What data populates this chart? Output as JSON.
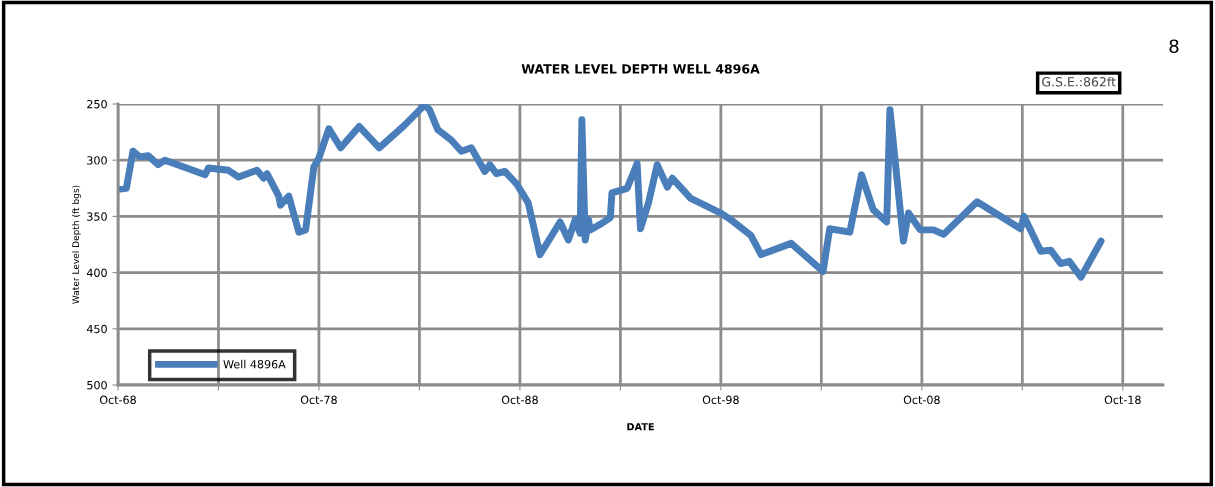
{
  "chart_data": {
    "type": "line",
    "title": "WATER LEVEL DEPTH WELL 4896A",
    "xlabel": "DATE",
    "ylabel": "Water Level Depth (ft bgs)",
    "annotations": [
      "G.S.E.:862ft",
      "8"
    ],
    "x": [
      "1968-10",
      "1969-03",
      "1969-07",
      "1969-11",
      "1970-04",
      "1970-10",
      "1971-02",
      "1972-03",
      "1973-02",
      "1973-04",
      "1974-04",
      "1974-10",
      "1975-09",
      "1976-01",
      "1976-03",
      "1976-10",
      "1976-11",
      "1977-04",
      "1977-10",
      "1978-02",
      "1978-07",
      "1978-10",
      "1979-04",
      "1979-11",
      "1980-10",
      "1981-10",
      "1983-01",
      "1984-01",
      "1984-04",
      "1984-09",
      "1985-05",
      "1985-11",
      "1986-05",
      "1987-01",
      "1987-04",
      "1987-08",
      "1988-01",
      "1988-08",
      "1989-03",
      "1989-10",
      "1990-10",
      "1991-03",
      "1991-07",
      "1991-10",
      "1991-11",
      "1992-01",
      "1992-03",
      "1992-04",
      "1992-11",
      "1993-04",
      "1993-05",
      "1994-02",
      "1994-08",
      "1994-10",
      "1995-03",
      "1995-08",
      "1996-02",
      "1996-05",
      "1997-04",
      "1998-10",
      "1999-04",
      "2000-04",
      "2000-10",
      "2002-04",
      "2003-11",
      "2004-03",
      "2005-03",
      "2005-10",
      "2006-05",
      "2007-01",
      "2007-03",
      "2007-11",
      "2008-02",
      "2008-09",
      "2009-05",
      "2009-11",
      "2011-07",
      "2013-09",
      "2013-11",
      "2014-09",
      "2015-03",
      "2015-09",
      "2016-02",
      "2016-09",
      "2017-09"
    ],
    "series": [
      {
        "name": "Well 4896A",
        "color": "#4a7ebb",
        "values": [
          326,
          325,
          292,
          297,
          296,
          304,
          300,
          307,
          313,
          307,
          309,
          315,
          309,
          316,
          312,
          332,
          340,
          332,
          364,
          362,
          306,
          298,
          272,
          289,
          270,
          289,
          269,
          251,
          255,
          273,
          282,
          292,
          289,
          310,
          304,
          312,
          310,
          321,
          338,
          384,
          355,
          371,
          353,
          365,
          264,
          371,
          353,
          362,
          356,
          351,
          329,
          325,
          303,
          361,
          337,
          304,
          324,
          316,
          334,
          347,
          353,
          367,
          384,
          374,
          399,
          361,
          364,
          313,
          344,
          355,
          255,
          372,
          347,
          362,
          362,
          366,
          337,
          361,
          350,
          381,
          380,
          392,
          390,
          404,
          372
        ]
      }
    ],
    "xlim": [
      "1968-10",
      "2020-10"
    ],
    "xticks": [
      {
        "value": "1968-10",
        "label": "Oct-68"
      },
      {
        "value": "1973-10",
        "label": null
      },
      {
        "value": "1978-10",
        "label": "Oct-78"
      },
      {
        "value": "1983-10",
        "label": null
      },
      {
        "value": "1988-10",
        "label": "Oct-88"
      },
      {
        "value": "1993-10",
        "label": null
      },
      {
        "value": "1998-10",
        "label": "Oct-98"
      },
      {
        "value": "2003-10",
        "label": null
      },
      {
        "value": "2008-10",
        "label": "Oct-08"
      },
      {
        "value": "2013-10",
        "label": null
      },
      {
        "value": "2018-10",
        "label": "Oct-18"
      }
    ],
    "ylim": [
      500,
      250
    ],
    "yticks": [
      250,
      300,
      350,
      400,
      450,
      500
    ],
    "grid": true,
    "legend": "bottom left",
    "marker": "none",
    "line_style": "solid"
  }
}
